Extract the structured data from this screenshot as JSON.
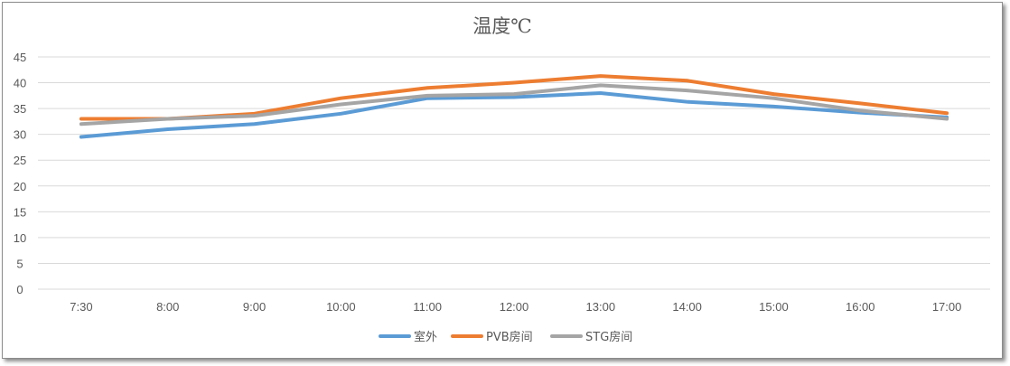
{
  "chart_data": {
    "type": "line",
    "title": "温度℃",
    "categories": [
      "7:30",
      "8:00",
      "9:00",
      "10:00",
      "11:00",
      "12:00",
      "13:00",
      "14:00",
      "15:00",
      "16:00",
      "17:00"
    ],
    "y_ticks": [
      "0",
      "5",
      "10",
      "15",
      "20",
      "25",
      "30",
      "35",
      "40",
      "45"
    ],
    "ylim": [
      0,
      45
    ],
    "grid": true,
    "legend_position": "bottom",
    "series": [
      {
        "name": "室外",
        "color": "#5b9bd5",
        "values": [
          29.5,
          31.0,
          32.0,
          34.0,
          37.0,
          37.2,
          38.0,
          36.3,
          35.4,
          34.2,
          33.3
        ]
      },
      {
        "name": "PVB房间",
        "color": "#ed7d31",
        "values": [
          33.0,
          33.0,
          34.0,
          37.0,
          39.0,
          40.0,
          41.3,
          40.4,
          37.8,
          36.0,
          34.1
        ]
      },
      {
        "name": "STG房间",
        "color": "#a5a5a5",
        "values": [
          32.0,
          33.0,
          33.6,
          35.8,
          37.5,
          37.8,
          39.5,
          38.5,
          37.0,
          34.6,
          33.0
        ]
      }
    ]
  }
}
